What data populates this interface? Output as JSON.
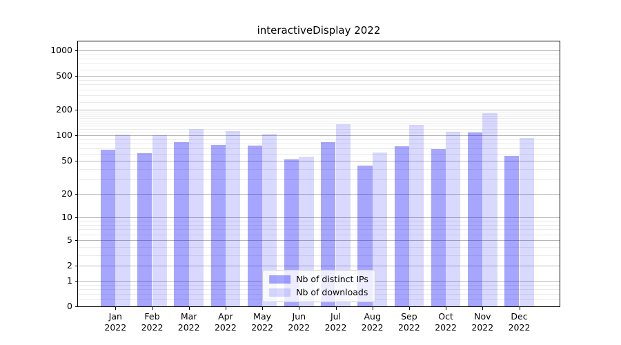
{
  "window": {
    "background": "#ffffff"
  },
  "chart_data": {
    "type": "bar",
    "title": "interactiveDisplay 2022",
    "categories": [
      "Jan 2022",
      "Feb 2022",
      "Mar 2022",
      "Apr 2022",
      "May 2022",
      "Jun 2022",
      "Jul 2022",
      "Aug 2022",
      "Sep 2022",
      "Oct 2022",
      "Nov 2022",
      "Dec 2022"
    ],
    "series": [
      {
        "name": "Nb of distinct IPs",
        "color": "#0000ff",
        "alpha": 0.35,
        "values": [
          68,
          62,
          84,
          77,
          76,
          52,
          83,
          44,
          75,
          69,
          108,
          57
        ]
      },
      {
        "name": "Nb of downloads",
        "color": "#0000ff",
        "alpha": 0.15,
        "values": [
          103,
          101,
          120,
          113,
          104,
          56,
          137,
          63,
          134,
          110,
          183,
          94
        ]
      }
    ],
    "xlabel": "",
    "ylabel": "",
    "yscale": "log1p",
    "ylim": [
      0,
      1281
    ],
    "yticks": [
      0,
      1,
      2,
      5,
      10,
      20,
      50,
      100,
      200,
      500,
      1000
    ],
    "minor_gridlines": [
      0.2,
      0.4,
      0.6,
      0.8,
      3,
      4,
      6,
      7,
      8,
      9,
      30,
      40,
      60,
      70,
      80,
      90,
      110,
      120,
      130,
      140,
      150,
      160,
      170,
      180,
      190,
      250,
      300,
      350,
      400,
      450,
      600,
      700,
      800,
      900
    ],
    "grid": true,
    "legend_position": "lower center",
    "axis_color": "#000000",
    "major_grid_color": "#b7b7b7",
    "minor_grid_color": "#ebebeb",
    "text_color": "#000000"
  }
}
